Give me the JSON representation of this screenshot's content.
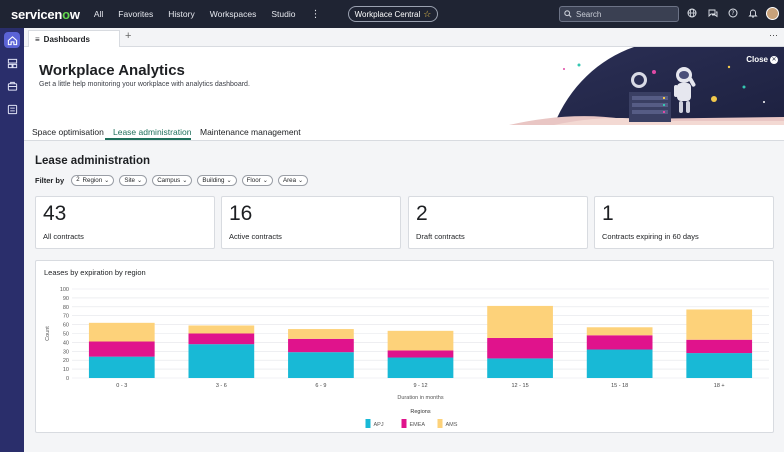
{
  "topbar": {
    "logo_pre": "servicen",
    "logo_o": "o",
    "logo_post": "w",
    "nav": [
      "All",
      "Favorites",
      "History",
      "Workspaces",
      "Studio"
    ],
    "more": "⋮",
    "workspace_pill": "Workplace Central",
    "search_placeholder": "Search"
  },
  "tabs": {
    "doc_tab": "Dashboards",
    "plus": "+",
    "more": "···"
  },
  "hero": {
    "title": "Workplace Analytics",
    "subtitle": "Get a little help monitoring your workplace with analytics dashboard.",
    "close": "Close"
  },
  "section_tabs": [
    {
      "label": "Space optimisation",
      "active": false
    },
    {
      "label": "Lease administration",
      "active": true
    },
    {
      "label": "Maintenance management",
      "active": false
    }
  ],
  "page": {
    "title": "Lease administration",
    "filter_label": "Filter by",
    "filters": [
      {
        "label": "Region",
        "count": "2"
      },
      {
        "label": "Site",
        "count": ""
      },
      {
        "label": "Campus",
        "count": ""
      },
      {
        "label": "Building",
        "count": ""
      },
      {
        "label": "Floor",
        "count": ""
      },
      {
        "label": "Area",
        "count": ""
      }
    ]
  },
  "kpis": [
    {
      "value": "43",
      "label": "All contracts"
    },
    {
      "value": "16",
      "label": "Active contracts"
    },
    {
      "value": "2",
      "label": "Draft contracts"
    },
    {
      "value": "1",
      "label": "Contracts expiring in 60 days"
    }
  ],
  "chart_data": {
    "type": "bar",
    "stacked": true,
    "title": "Leases by expiration by region",
    "xlabel": "Duration in months",
    "ylabel": "Count",
    "ylim": [
      0,
      100
    ],
    "yticks": [
      0,
      10,
      20,
      30,
      40,
      50,
      60,
      70,
      80,
      90,
      100
    ],
    "categories": [
      "0 - 3",
      "3 - 6",
      "6 - 9",
      "9 - 12",
      "12 - 15",
      "15 - 18",
      "18 +"
    ],
    "series": [
      {
        "name": "APJ",
        "color": "#18b9d6",
        "values": [
          24,
          38,
          29,
          23,
          22,
          32,
          28
        ]
      },
      {
        "name": "EMEA",
        "color": "#e0138c",
        "values": [
          17,
          12,
          15,
          8,
          23,
          16,
          15
        ]
      },
      {
        "name": "AMS",
        "color": "#fdd27a",
        "values": [
          21,
          9,
          11,
          22,
          36,
          9,
          34
        ]
      }
    ],
    "legend_title": "Regions",
    "legend_position": "bottom",
    "grid": true
  }
}
